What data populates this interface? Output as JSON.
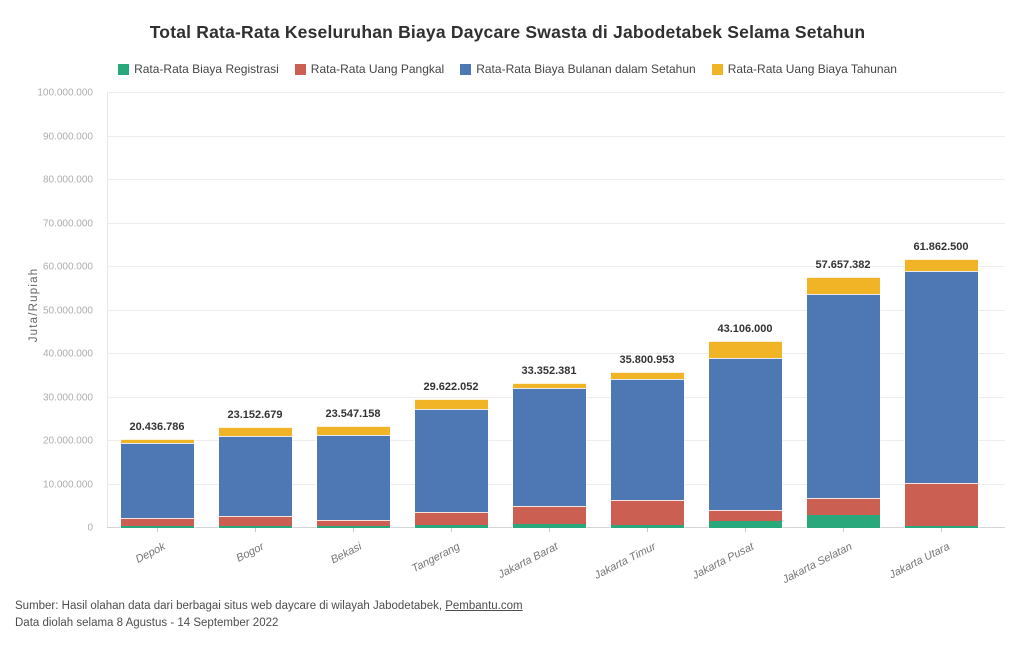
{
  "title": "Total Rata-Rata Keseluruhan Biaya Daycare Swasta di Jabodetabek Selama Setahun",
  "ylabel": "Juta/Rupiah",
  "footer": {
    "source_prefix": "Sumber: Hasil olahan data dari berbagai situs web daycare di wilayah Jabodetabek, ",
    "source_link": "Pembantu.com",
    "processed_line": "Data diolah selama 8 Agustus - 14 September 2022"
  },
  "colors": {
    "registrasi": "#29a87c",
    "pangkal": "#cb5f51",
    "bulanan": "#4e78b4",
    "tahunan": "#f0b426",
    "grid": "#ededed",
    "title_text": "#303030",
    "tick_text": "#adadad"
  },
  "chart_data": {
    "type": "bar",
    "stacked": true,
    "title": "Total Rata-Rata Keseluruhan Biaya Daycare Swasta di Jabodetabek Selama Setahun",
    "ylabel": "Juta/Rupiah",
    "xlabel": "",
    "ylim": [
      0,
      100000000
    ],
    "ytick_interval": 10000000,
    "grid": true,
    "legend_position": "top",
    "categories": [
      "Depok",
      "Bogor",
      "Bekasi",
      "Tangerang",
      "Jakarta Barat",
      "Jakarta Timur",
      "Jakarta Pusat",
      "Jakarta Selatan",
      "Jakarta Utara"
    ],
    "series": [
      {
        "name": "Rata-Rata Biaya Registrasi",
        "color": "#29a87c",
        "values": [
          500000,
          450000,
          450000,
          800000,
          850000,
          650000,
          1700000,
          3100000,
          500000
        ]
      },
      {
        "name": "Rata-Rata Uang Pangkal",
        "color": "#cb5f51",
        "values": [
          1736786,
          2252679,
          1500000,
          2900000,
          4300000,
          5900000,
          2400000,
          3900000,
          9800000
        ]
      },
      {
        "name": "Rata-Rata Biaya Bulanan dalam Setahun",
        "color": "#4e78b4",
        "values": [
          17400000,
          18500000,
          19500000,
          23600000,
          27050000,
          27700000,
          35000000,
          46800000,
          48900000
        ]
      },
      {
        "name": "Rata-Rata Uang Biaya Tahunan",
        "color": "#f0b426",
        "values": [
          800000,
          1950000,
          2097158,
          2322052,
          1152381,
          1550953,
          4006000,
          3857382,
          2662500
        ]
      }
    ],
    "totals_display": [
      "20.436.786",
      "23.152.679",
      "23.547.158",
      "29.622.052",
      "33.352.381",
      "35.800.953",
      "43.106.000",
      "57.657.382",
      "61.862.500"
    ],
    "ytick_labels": [
      "0",
      "10.000.000",
      "20.000.000",
      "30.000.000",
      "40.000.000",
      "50.000.000",
      "60.000.000",
      "70.000.000",
      "80.000.000",
      "90.000.000",
      "100.000.000"
    ]
  }
}
